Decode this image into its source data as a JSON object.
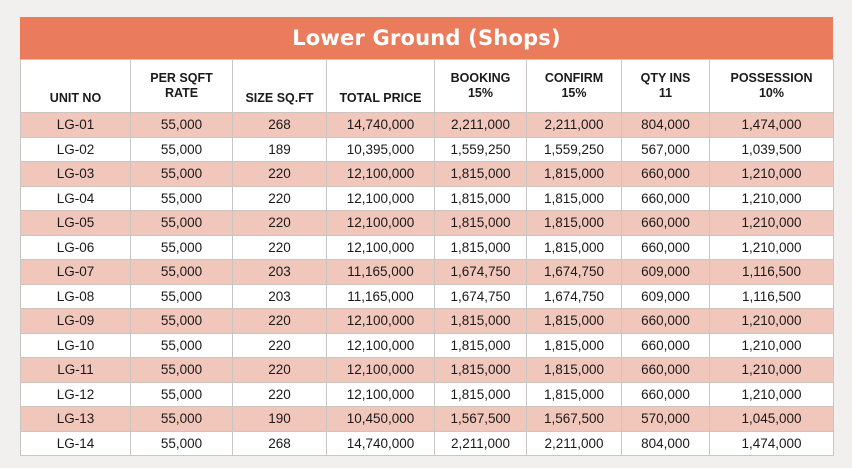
{
  "title": "Lower Ground (Shops)",
  "columns": [
    [
      "UNIT NO"
    ],
    [
      "PER SQFT",
      "RATE"
    ],
    [
      "SIZE SQ.FT"
    ],
    [
      "TOTAL PRICE"
    ],
    [
      "BOOKING",
      "15%"
    ],
    [
      "CONFIRM",
      "15%"
    ],
    [
      "QTY INS",
      "11"
    ],
    [
      "POSSESSION",
      "10%"
    ]
  ],
  "rows": [
    [
      "LG-01",
      "55,000",
      "268",
      "14,740,000",
      "2,211,000",
      "2,211,000",
      "804,000",
      "1,474,000"
    ],
    [
      "LG-02",
      "55,000",
      "189",
      "10,395,000",
      "1,559,250",
      "1,559,250",
      "567,000",
      "1,039,500"
    ],
    [
      "LG-03",
      "55,000",
      "220",
      "12,100,000",
      "1,815,000",
      "1,815,000",
      "660,000",
      "1,210,000"
    ],
    [
      "LG-04",
      "55,000",
      "220",
      "12,100,000",
      "1,815,000",
      "1,815,000",
      "660,000",
      "1,210,000"
    ],
    [
      "LG-05",
      "55,000",
      "220",
      "12,100,000",
      "1,815,000",
      "1,815,000",
      "660,000",
      "1,210,000"
    ],
    [
      "LG-06",
      "55,000",
      "220",
      "12,100,000",
      "1,815,000",
      "1,815,000",
      "660,000",
      "1,210,000"
    ],
    [
      "LG-07",
      "55,000",
      "203",
      "11,165,000",
      "1,674,750",
      "1,674,750",
      "609,000",
      "1,116,500"
    ],
    [
      "LG-08",
      "55,000",
      "203",
      "11,165,000",
      "1,674,750",
      "1,674,750",
      "609,000",
      "1,116,500"
    ],
    [
      "LG-09",
      "55,000",
      "220",
      "12,100,000",
      "1,815,000",
      "1,815,000",
      "660,000",
      "1,210,000"
    ],
    [
      "LG-10",
      "55,000",
      "220",
      "12,100,000",
      "1,815,000",
      "1,815,000",
      "660,000",
      "1,210,000"
    ],
    [
      "LG-11",
      "55,000",
      "220",
      "12,100,000",
      "1,815,000",
      "1,815,000",
      "660,000",
      "1,210,000"
    ],
    [
      "LG-12",
      "55,000",
      "220",
      "12,100,000",
      "1,815,000",
      "1,815,000",
      "660,000",
      "1,210,000"
    ],
    [
      "LG-13",
      "55,000",
      "190",
      "10,450,000",
      "1,567,500",
      "1,567,500",
      "570,000",
      "1,045,000"
    ],
    [
      "LG-14",
      "55,000",
      "268",
      "14,740,000",
      "2,211,000",
      "2,211,000",
      "804,000",
      "1,474,000"
    ]
  ],
  "colors": {
    "banner": "#ea7b5d",
    "stripe": "#f2c7bb",
    "background": "#f1f0ee"
  }
}
